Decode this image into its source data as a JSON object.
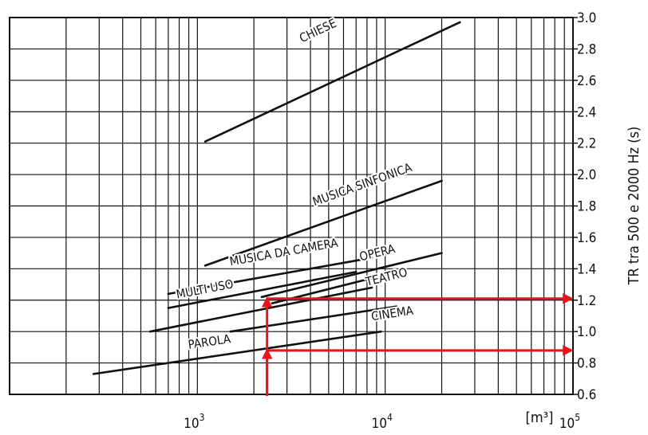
{
  "chart_data": {
    "type": "line",
    "title": "",
    "xlabel": "",
    "x_unit": "[m³]",
    "ylabel": "TR tra 500 e 2000 Hz (s)",
    "x_scale": "log",
    "xlim": [
      100,
      100000
    ],
    "ylim": [
      0.6,
      3.0
    ],
    "grid": true,
    "x_ticks": [
      {
        "value": 1000,
        "base": "10",
        "exp": "3"
      },
      {
        "value": 10000,
        "base": "10",
        "exp": "4"
      },
      {
        "value": 100000,
        "base": "10",
        "exp": "5"
      }
    ],
    "y_ticks": [
      "0.6",
      "0.8",
      "1.0",
      "1.2",
      "1.4",
      "1.6",
      "1.8",
      "2.0",
      "2.2",
      "2.4",
      "2.6",
      "2.8",
      "3.0"
    ],
    "series": [
      {
        "name": "CHIESE",
        "x": [
          1100,
          25000
        ],
        "y": [
          2.21,
          2.97
        ],
        "label_x": 3600,
        "label_y": 2.84
      },
      {
        "name": "MUSICA SINFONICA",
        "x": [
          1100,
          20000
        ],
        "y": [
          1.42,
          1.96
        ],
        "label_x": 4200,
        "label_y": 1.8
      },
      {
        "name": "MUSICA DA CAMERA",
        "x": [
          700,
          8500
        ],
        "y": [
          1.24,
          1.47
        ],
        "label_x": 1500,
        "label_y": 1.42
      },
      {
        "name": "OPERA",
        "x": [
          2200,
          20000
        ],
        "y": [
          1.22,
          1.5
        ],
        "label_x": 7400,
        "label_y": 1.45
      },
      {
        "name": "MULTI USO",
        "x": [
          700,
          7000
        ],
        "y": [
          1.15,
          1.38
        ],
        "label_x": 780,
        "label_y": 1.21
      },
      {
        "name": "TEATRO",
        "x": [
          2500,
          8500
        ],
        "y": [
          1.18,
          1.34
        ],
        "label_x": 8000,
        "label_y": 1.29
      },
      {
        "name": "",
        "x": [
          560,
          8500
        ],
        "y": [
          1.0,
          1.28
        ],
        "label_x": null,
        "label_y": null
      },
      {
        "name": "CINEMA",
        "x": [
          1500,
          11500
        ],
        "y": [
          1.0,
          1.16
        ],
        "label_x": 8500,
        "label_y": 1.07
      },
      {
        "name": "PAROLA",
        "x": [
          280,
          9500
        ],
        "y": [
          0.73,
          1.0
        ],
        "label_x": 900,
        "label_y": 0.89
      }
    ],
    "annotations": [
      {
        "type": "arrow-path",
        "color": "#e8141c",
        "points": [
          [
            2350,
            0.6
          ],
          [
            2350,
            1.21
          ],
          [
            100000,
            1.21
          ]
        ]
      },
      {
        "type": "arrow-path",
        "color": "#e8141c",
        "points": [
          [
            2350,
            0.6
          ],
          [
            2350,
            0.88
          ],
          [
            100000,
            0.88
          ]
        ]
      }
    ]
  }
}
